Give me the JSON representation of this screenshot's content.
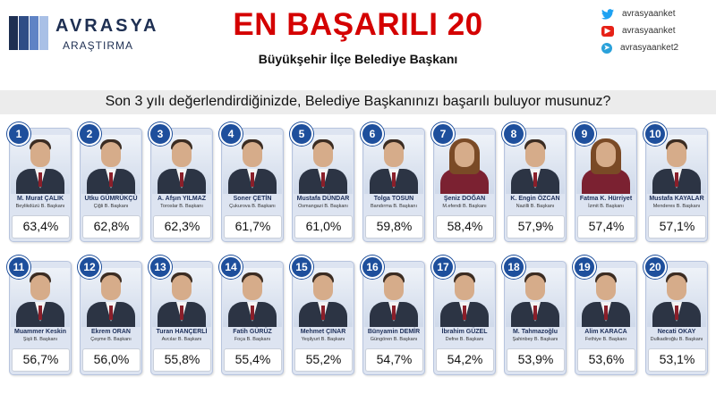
{
  "brand": {
    "name": "AVRASYA",
    "sub": "ARAŞTIRMA",
    "colors": [
      "#1e2f52",
      "#2f4d86",
      "#5f83c5",
      "#a9c0e6"
    ]
  },
  "title": "EN BAŞARILI 20",
  "subtitle": "Büyükşehir İlçe Belediye Başkanı",
  "social": [
    {
      "icon": "twitter-icon",
      "handle": "avrasyaanket"
    },
    {
      "icon": "youtube-icon",
      "handle": "avrasyaanket"
    },
    {
      "icon": "telegram-icon",
      "handle": "avrasyaanket2"
    }
  ],
  "question": "Son 3 yılı değerlendirdiğinizde, Belediye Başkanınızı başarılı buluyor musunuz?",
  "mayors": [
    {
      "rank": "1",
      "name": "M. Murat ÇALIK",
      "city": "Beylikdüzü B. Başkanı",
      "score": "63,4%"
    },
    {
      "rank": "2",
      "name": "Utku GÜMRÜKÇÜ",
      "city": "Çiğli B. Başkanı",
      "score": "62,8%"
    },
    {
      "rank": "3",
      "name": "A. Afşın YILMAZ",
      "city": "Toroslar B. Başkanı",
      "score": "62,3%"
    },
    {
      "rank": "4",
      "name": "Soner ÇETİN",
      "city": "Çukurova B. Başkanı",
      "score": "61,7%"
    },
    {
      "rank": "5",
      "name": "Mustafa DÜNDAR",
      "city": "Osmangazi B. Başkanı",
      "score": "61,0%"
    },
    {
      "rank": "6",
      "name": "Tolga TOSUN",
      "city": "Bandırma B. Başkanı",
      "score": "59,8%"
    },
    {
      "rank": "7",
      "name": "Şeniz DOĞAN",
      "city": "M.efendi B. Başkanı",
      "score": "58,4%"
    },
    {
      "rank": "8",
      "name": "K. Engin ÖZCAN",
      "city": "Nazilli B. Başkanı",
      "score": "57,9%"
    },
    {
      "rank": "9",
      "name": "Fatma K. Hürriyet",
      "city": "İzmit B. Başkanı",
      "score": "57,4%"
    },
    {
      "rank": "10",
      "name": "Mustafa KAYALAR",
      "city": "Menderes B. Başkanı",
      "score": "57,1%"
    },
    {
      "rank": "11",
      "name": "Muammer Keskin",
      "city": "Şişli B. Başkanı",
      "score": "56,7%"
    },
    {
      "rank": "12",
      "name": "Ekrem ORAN",
      "city": "Çeşme B. Başkanı",
      "score": "56,0%"
    },
    {
      "rank": "13",
      "name": "Turan HANÇERLİ",
      "city": "Avcılar B. Başkanı",
      "score": "55,8%"
    },
    {
      "rank": "14",
      "name": "Fatih GÜRÜZ",
      "city": "Foça B. Başkanı",
      "score": "55,4%"
    },
    {
      "rank": "15",
      "name": "Mehmet ÇINAR",
      "city": "Yeşilyurt B. Başkanı",
      "score": "55,2%"
    },
    {
      "rank": "16",
      "name": "Bünyamin DEMİR",
      "city": "Güngören B. Başkanı",
      "score": "54,7%"
    },
    {
      "rank": "17",
      "name": "İbrahim GÜZEL",
      "city": "Defne B. Başkanı",
      "score": "54,2%"
    },
    {
      "rank": "18",
      "name": "M. Tahmazoğlu",
      "city": "Şahinbey B. Başkanı",
      "score": "53,9%"
    },
    {
      "rank": "19",
      "name": "Alim KARACA",
      "city": "Fethiye B. Başkanı",
      "score": "53,6%"
    },
    {
      "rank": "20",
      "name": "Necati OKAY",
      "city": "Dulkadiroğlu B. Başkanı",
      "score": "53,1%"
    }
  ]
}
